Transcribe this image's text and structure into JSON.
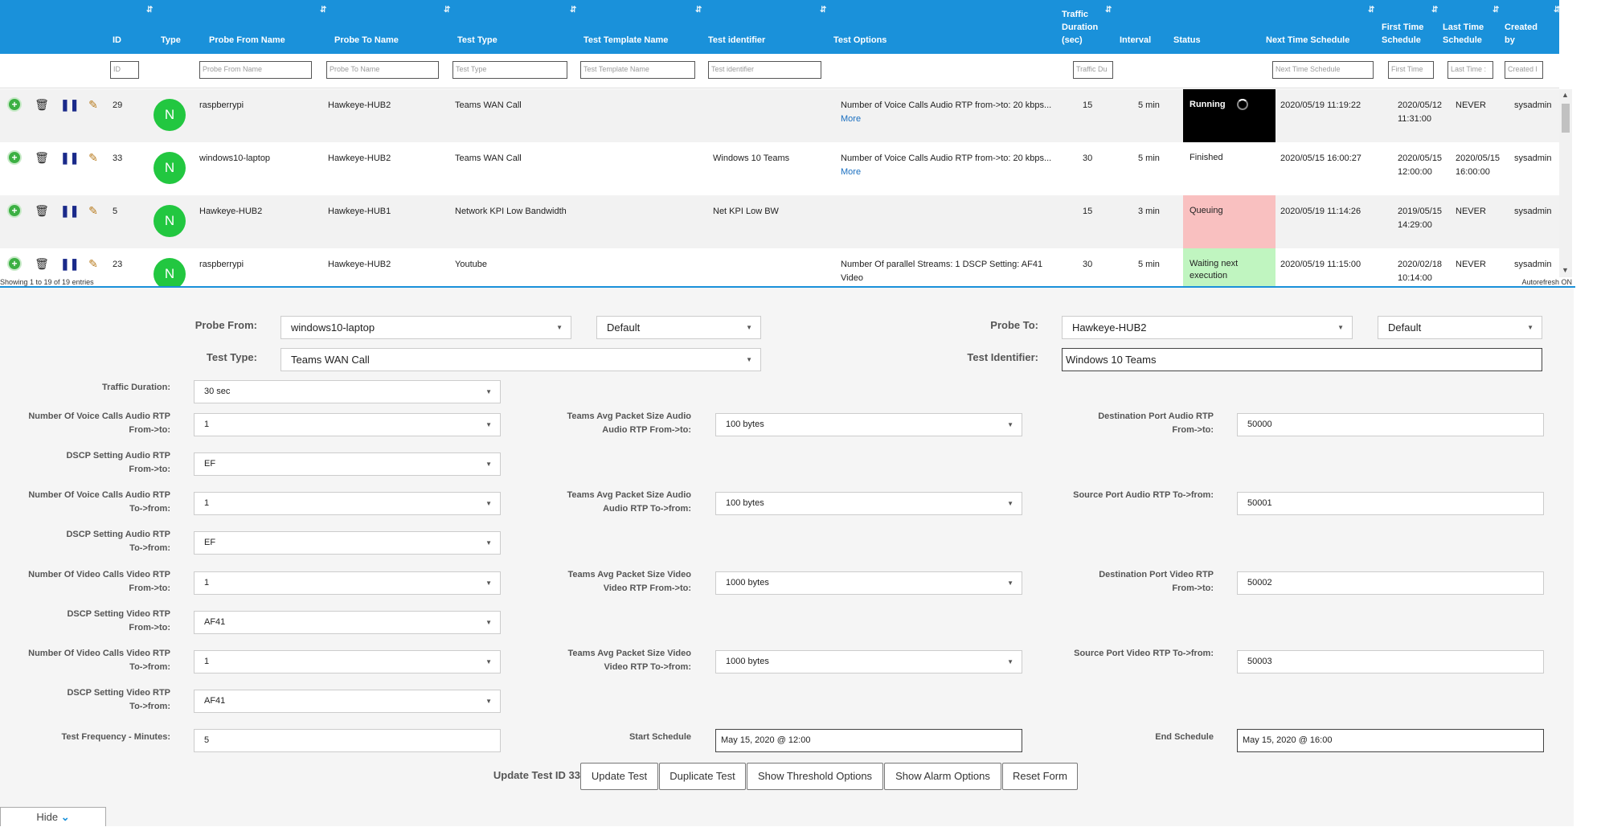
{
  "table": {
    "columns": [
      {
        "key": "id",
        "label": "ID",
        "filter": "ID"
      },
      {
        "key": "type",
        "label": "Type",
        "filter": ""
      },
      {
        "key": "probe_from",
        "label": "Probe From Name",
        "filter": "Probe From Name"
      },
      {
        "key": "probe_to",
        "label": "Probe To Name",
        "filter": "Probe To Name"
      },
      {
        "key": "test_type",
        "label": "Test Type",
        "filter": "Test Type"
      },
      {
        "key": "template",
        "label": "Test Template Name",
        "filter": "Test Template Name"
      },
      {
        "key": "identifier",
        "label": "Test identifier",
        "filter": "Test identifier"
      },
      {
        "key": "options",
        "label": "Test Options",
        "filter": ""
      },
      {
        "key": "duration",
        "label": "Traffic Duration (sec)",
        "label_lines": [
          "Traffic",
          "Duration",
          "(sec)"
        ],
        "filter": "Traffic Du"
      },
      {
        "key": "interval",
        "label": "Interval",
        "filter": ""
      },
      {
        "key": "status",
        "label": "Status",
        "filter": ""
      },
      {
        "key": "next",
        "label": "Next Time Schedule",
        "filter": "Next Time Schedule"
      },
      {
        "key": "first",
        "label": "First Time Schedule",
        "label_lines": [
          "First Time",
          "Schedule"
        ],
        "filter": "First Time"
      },
      {
        "key": "last",
        "label": "Last Time Schedule",
        "label_lines": [
          "Last Time",
          "Schedule"
        ],
        "filter": "Last Time :"
      },
      {
        "key": "created",
        "label": "Created by",
        "label_lines": [
          "Created",
          "by"
        ],
        "filter": "Created l"
      }
    ],
    "rows": [
      {
        "id": "29",
        "type": "N",
        "probe_from": "raspberrypi",
        "probe_to": "Hawkeye-HUB2",
        "test_type": "Teams WAN Call",
        "template": "",
        "identifier": "",
        "options": "Number of Voice Calls Audio RTP from->to: 20 kbps...",
        "more": "More",
        "duration": "15",
        "interval": "5 min",
        "status": "Running",
        "status_style": "running",
        "next": "2020/05/19 11:19:22",
        "first": [
          "2020/05/12",
          "11:31:00"
        ],
        "last": [
          "NEVER"
        ],
        "created": "sysadmin"
      },
      {
        "id": "33",
        "type": "N",
        "probe_from": "windows10-laptop",
        "probe_to": "Hawkeye-HUB2",
        "test_type": "Teams WAN Call",
        "template": "",
        "identifier": "Windows 10 Teams",
        "options": "Number of Voice Calls Audio RTP from->to: 20 kbps...",
        "more": "More",
        "duration": "30",
        "interval": "5 min",
        "status": "Finished",
        "status_style": "finished",
        "next": "2020/05/15 16:00:27",
        "first": [
          "2020/05/15",
          "12:00:00"
        ],
        "last": [
          "2020/05/15",
          "16:00:00"
        ],
        "created": "sysadmin"
      },
      {
        "id": "5",
        "type": "N",
        "probe_from": "Hawkeye-HUB2",
        "probe_to": "Hawkeye-HUB1",
        "test_type": "Network KPI Low Bandwidth",
        "template": "",
        "identifier": "Net KPI Low BW",
        "options": "",
        "more": "",
        "duration": "15",
        "interval": "3 min",
        "status": "Queuing",
        "status_style": "queuing",
        "next": "2020/05/19 11:14:26",
        "first": [
          "2019/05/15",
          "14:29:00"
        ],
        "last": [
          "NEVER"
        ],
        "created": "sysadmin"
      },
      {
        "id": "23",
        "type": "N",
        "probe_from": "raspberrypi",
        "probe_to": "Hawkeye-HUB2",
        "test_type": "Youtube",
        "template": "",
        "identifier": "",
        "options": "Number Of parallel Streams: 1 DSCP Setting: AF41",
        "more": "Video",
        "duration": "30",
        "interval": "5 min",
        "status": "Waiting next execution",
        "status_style": "waiting",
        "next": "2020/05/19 11:15:00",
        "first": [
          "2020/02/18",
          "10:14:00"
        ],
        "last": [
          "NEVER"
        ],
        "created": "sysadmin"
      }
    ],
    "footer_left": "Showing 1 to 19 of 19 entries",
    "footer_right": "Autorefresh ON"
  },
  "form": {
    "probe_from_label": "Probe From:",
    "probe_from_value": "windows10-laptop",
    "probe_from_profile": "Default",
    "probe_to_label": "Probe To:",
    "probe_to_value": "Hawkeye-HUB2",
    "probe_to_profile": "Default",
    "test_type_label": "Test Type:",
    "test_type_value": "Teams WAN Call",
    "test_identifier_label": "Test Identifier:",
    "test_identifier_value": "Windows 10 Teams",
    "traffic_duration_label": "Traffic Duration:",
    "traffic_duration_value": "30 sec",
    "col1": [
      {
        "label": [
          "Number Of Voice Calls Audio RTP",
          "From->to:"
        ],
        "value": "1"
      },
      {
        "label": [
          "DSCP Setting Audio RTP",
          "From->to:"
        ],
        "value": "EF"
      },
      {
        "label": [
          "Number Of Voice Calls Audio RTP",
          "To->from:"
        ],
        "value": "1"
      },
      {
        "label": [
          "DSCP Setting Audio RTP",
          "To->from:"
        ],
        "value": "EF"
      },
      {
        "label": [
          "Number Of Video Calls Video RTP",
          "From->to:"
        ],
        "value": "1"
      },
      {
        "label": [
          "DSCP Setting Video RTP",
          "From->to:"
        ],
        "value": "AF41"
      },
      {
        "label": [
          "Number Of Video Calls Video RTP",
          "To->from:"
        ],
        "value": "1"
      },
      {
        "label": [
          "DSCP Setting Video RTP",
          "To->from:"
        ],
        "value": "AF41"
      }
    ],
    "col2": [
      {
        "label": [
          "Teams Avg Packet Size Audio",
          "Audio RTP From->to:"
        ],
        "value": "100 bytes"
      },
      {
        "label": [
          "Teams Avg Packet Size Audio",
          "Audio RTP To->from:"
        ],
        "value": "100 bytes"
      },
      {
        "label": [
          "Teams Avg Packet Size Video",
          "Video RTP From->to:"
        ],
        "value": "1000 bytes"
      },
      {
        "label": [
          "Teams Avg Packet Size Video",
          "Video RTP To->from:"
        ],
        "value": "1000 bytes"
      }
    ],
    "col3": [
      {
        "label": [
          "Destination Port Audio RTP",
          "From->to:"
        ],
        "value": "50000"
      },
      {
        "label": [
          "Source Port Audio RTP To->from:"
        ],
        "value": "50001"
      },
      {
        "label": [
          "Destination Port Video RTP",
          "From->to:"
        ],
        "value": "50002"
      },
      {
        "label": [
          "Source Port Video RTP To->from:"
        ],
        "value": "50003"
      }
    ],
    "frequency_label": "Test Frequency - Minutes:",
    "frequency_value": "5",
    "start_label": "Start Schedule",
    "start_value": "May 15, 2020 @ 12:00",
    "end_label": "End Schedule",
    "end_value": "May 15, 2020 @ 16:00",
    "update_label": "Update Test ID 33",
    "buttons": [
      "Update Test",
      "Duplicate Test",
      "Show Threshold Options",
      "Show Alarm Options",
      "Reset Form"
    ],
    "hide_label": "Hide"
  },
  "colors": {
    "header_bg": "#1a91da",
    "running_bg": "#000000",
    "queuing_bg": "#f9c0c0",
    "waiting_bg": "#c0f5c0",
    "type_badge": "#22c740"
  },
  "icons": [
    "plus-circle-icon",
    "trash-icon",
    "pause-icon",
    "edit-icon",
    "spinner-icon",
    "chevron-down-icon",
    "sort-icon"
  ]
}
